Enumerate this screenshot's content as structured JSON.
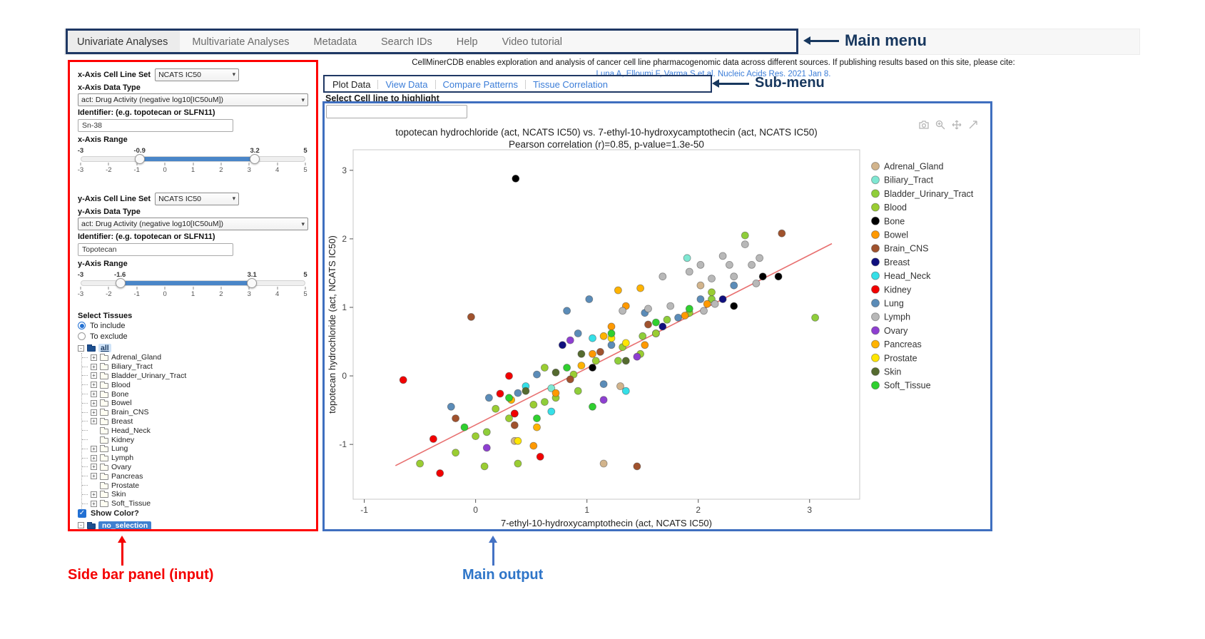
{
  "annotations": {
    "main_menu": "Main menu",
    "sub_menu": "Sub-menu",
    "sidebar": "Side bar panel (input)",
    "main_output": "Main output"
  },
  "main_menu": {
    "items": [
      {
        "label": "Univariate Analyses",
        "active": true
      },
      {
        "label": "Multivariate Analyses",
        "active": false
      },
      {
        "label": "Metadata",
        "active": false
      },
      {
        "label": "Search IDs",
        "active": false
      },
      {
        "label": "Help",
        "active": false
      },
      {
        "label": "Video tutorial",
        "active": false
      }
    ]
  },
  "citation": {
    "line1": "CellMinerCDB enables exploration and analysis of cancer cell line pharmacogenomic data across different sources. If publishing results based on this site, please cite:",
    "link": "Luna A, Elloumi F, Varma S et al. Nucleic Acids Res. 2021 Jan 8."
  },
  "submenu": {
    "items": [
      {
        "label": "Plot Data",
        "active": true
      },
      {
        "label": "View Data",
        "active": false
      },
      {
        "label": "Compare Patterns",
        "active": false
      },
      {
        "label": "Tissue Correlation",
        "active": false
      }
    ]
  },
  "highlight": {
    "label": "Select Cell line to highlight",
    "value": ""
  },
  "sidebar": {
    "x_axis": {
      "cell_line_set_label": "x-Axis Cell Line Set",
      "cell_line_set_value": "NCATS IC50",
      "data_type_label": "x-Axis Data Type",
      "data_type_value": "act: Drug Activity (negative log10[IC50uM])",
      "identifier_label": "Identifier: (e.g. topotecan or SLFN11)",
      "identifier_value": "Sn-38",
      "range_label": "x-Axis Range",
      "range_min": -3,
      "range_max": 5,
      "low": -0.9,
      "high": 3.2,
      "ticks": [
        -3,
        -2,
        -1,
        0,
        1,
        2,
        3,
        4,
        5
      ]
    },
    "y_axis": {
      "cell_line_set_label": "y-Axis Cell Line Set",
      "cell_line_set_value": "NCATS IC50",
      "data_type_label": "y-Axis Data Type",
      "data_type_value": "act: Drug Activity (negative log10[IC50uM])",
      "identifier_label": "Identifier: (e.g. topotecan or SLFN11)",
      "identifier_value": "Topotecan",
      "range_label": "y-Axis Range",
      "range_min": -3,
      "range_max": 5,
      "low": -1.6,
      "high": 3.1,
      "ticks": [
        -3,
        -2,
        -1,
        0,
        1,
        2,
        3,
        4,
        5
      ]
    },
    "tissues": {
      "label": "Select Tissues",
      "include_label": "To include",
      "exclude_label": "To exclude",
      "include_selected": true,
      "root": "all",
      "items": [
        {
          "label": "Adrenal_Gland",
          "expandable": true
        },
        {
          "label": "Biliary_Tract",
          "expandable": true
        },
        {
          "label": "Bladder_Urinary_Tract",
          "expandable": true
        },
        {
          "label": "Blood",
          "expandable": true
        },
        {
          "label": "Bone",
          "expandable": true
        },
        {
          "label": "Bowel",
          "expandable": true
        },
        {
          "label": "Brain_CNS",
          "expandable": true
        },
        {
          "label": "Breast",
          "expandable": true
        },
        {
          "label": "Head_Neck",
          "expandable": false
        },
        {
          "label": "Kidney",
          "expandable": false
        },
        {
          "label": "Lung",
          "expandable": true
        },
        {
          "label": "Lymph",
          "expandable": true
        },
        {
          "label": "Ovary",
          "expandable": true
        },
        {
          "label": "Pancreas",
          "expandable": true
        },
        {
          "label": "Prostate",
          "expandable": false
        },
        {
          "label": "Skin",
          "expandable": true
        },
        {
          "label": "Soft_Tissue",
          "expandable": true
        }
      ],
      "show_color_label": "Show Color?",
      "show_color_checked": true,
      "no_selection_label": "no_selection"
    }
  },
  "chart_data": {
    "type": "scatter",
    "title": "topotecan hydrochloride (act, NCATS IC50) vs. 7-ethyl-10-hydroxycamptothecin (act, NCATS IC50)",
    "subtitle": "Pearson correlation (r)=0.85, p-value=1.3e-50",
    "xlabel": "7-ethyl-10-hydroxycamptothecin (act, NCATS IC50)",
    "ylabel": "topotecan hydrochloride (act, NCATS IC50)",
    "xlim": [
      -1.1,
      3.45
    ],
    "ylim": [
      -1.8,
      3.3
    ],
    "xticks": [
      -1,
      0,
      1,
      2,
      3
    ],
    "yticks": [
      -1,
      0,
      1,
      2,
      3
    ],
    "grid": false,
    "legend_position": "right",
    "trendline": {
      "x1": -0.72,
      "y1": -1.31,
      "x2": 3.2,
      "y2": 1.93,
      "color": "#e87070"
    },
    "modebar_icons": [
      "camera",
      "zoom-in",
      "pan",
      "autoscale"
    ],
    "series": [
      {
        "name": "Adrenal_Gland",
        "color": "#d2b48c",
        "points": [
          [
            1.15,
            -1.28
          ],
          [
            2.02,
            1.32
          ],
          [
            1.3,
            -0.15
          ],
          [
            0.35,
            -0.95
          ]
        ]
      },
      {
        "name": "Biliary_Tract",
        "color": "#7fe7d2",
        "points": [
          [
            1.9,
            1.72
          ],
          [
            0.68,
            -0.18
          ],
          [
            1.62,
            0.62
          ]
        ]
      },
      {
        "name": "Bladder_Urinary_Tract",
        "color": "#8fce3a",
        "points": [
          [
            0.1,
            -0.82
          ],
          [
            0.62,
            -0.38
          ],
          [
            1.28,
            0.22
          ],
          [
            1.72,
            0.82
          ],
          [
            2.12,
            1.12
          ],
          [
            3.05,
            0.85
          ],
          [
            1.5,
            0.58
          ],
          [
            0.92,
            -0.22
          ],
          [
            2.42,
            2.05
          ]
        ]
      },
      {
        "name": "Blood",
        "color": "#9acd32",
        "points": [
          [
            -0.5,
            -1.28
          ],
          [
            -0.18,
            -1.12
          ],
          [
            0.0,
            -0.88
          ],
          [
            0.08,
            -1.32
          ],
          [
            0.3,
            -0.62
          ],
          [
            0.38,
            -1.28
          ],
          [
            0.52,
            -0.42
          ],
          [
            0.72,
            -0.32
          ],
          [
            0.88,
            0.02
          ],
          [
            1.08,
            0.22
          ],
          [
            1.32,
            0.42
          ],
          [
            1.62,
            0.62
          ],
          [
            1.92,
            0.92
          ],
          [
            2.12,
            1.22
          ],
          [
            0.62,
            0.12
          ],
          [
            1.48,
            0.32
          ],
          [
            0.18,
            -0.48
          ]
        ]
      },
      {
        "name": "Bone",
        "color": "#000000",
        "points": [
          [
            0.36,
            2.88
          ],
          [
            2.58,
            1.45
          ],
          [
            2.72,
            1.45
          ],
          [
            1.05,
            0.12
          ],
          [
            2.32,
            1.02
          ]
        ]
      },
      {
        "name": "Bowel",
        "color": "#ff9900",
        "points": [
          [
            0.35,
            -0.55
          ],
          [
            0.72,
            -0.25
          ],
          [
            1.05,
            0.32
          ],
          [
            1.52,
            0.45
          ],
          [
            1.88,
            0.88
          ],
          [
            2.08,
            1.05
          ],
          [
            1.35,
            1.02
          ],
          [
            0.52,
            -1.02
          ],
          [
            1.22,
            0.72
          ]
        ]
      },
      {
        "name": "Brain_CNS",
        "color": "#a0522d",
        "points": [
          [
            -0.04,
            0.86
          ],
          [
            2.75,
            2.08
          ],
          [
            1.55,
            0.75
          ],
          [
            0.35,
            -0.72
          ],
          [
            1.12,
            0.35
          ],
          [
            -0.18,
            -0.62
          ],
          [
            0.85,
            -0.05
          ],
          [
            1.45,
            -1.32
          ]
        ]
      },
      {
        "name": "Breast",
        "color": "#10107e",
        "points": [
          [
            0.78,
            0.45
          ],
          [
            1.68,
            0.72
          ],
          [
            2.22,
            1.12
          ]
        ]
      },
      {
        "name": "Head_Neck",
        "color": "#35e0e8",
        "points": [
          [
            0.68,
            -0.52
          ],
          [
            1.05,
            0.55
          ],
          [
            0.45,
            -0.15
          ],
          [
            1.35,
            -0.22
          ]
        ]
      },
      {
        "name": "Kidney",
        "color": "#f20000",
        "points": [
          [
            -0.65,
            -0.06
          ],
          [
            -0.38,
            -0.92
          ],
          [
            -0.32,
            -1.42
          ],
          [
            0.22,
            -0.26
          ],
          [
            0.35,
            -0.55
          ],
          [
            0.58,
            -1.18
          ],
          [
            0.3,
            0.0
          ]
        ]
      },
      {
        "name": "Lung",
        "color": "#5b8cb8",
        "points": [
          [
            -0.22,
            -0.45
          ],
          [
            0.12,
            -0.32
          ],
          [
            0.55,
            0.02
          ],
          [
            0.82,
            0.95
          ],
          [
            1.02,
            1.12
          ],
          [
            1.22,
            0.45
          ],
          [
            1.52,
            0.92
          ],
          [
            1.82,
            0.85
          ],
          [
            2.02,
            1.12
          ],
          [
            1.15,
            -0.12
          ],
          [
            0.38,
            -0.25
          ],
          [
            2.32,
            1.32
          ],
          [
            0.92,
            0.62
          ]
        ]
      },
      {
        "name": "Lymph",
        "color": "#b8b8b8",
        "points": [
          [
            1.32,
            0.95
          ],
          [
            1.55,
            0.98
          ],
          [
            1.75,
            1.02
          ],
          [
            1.92,
            1.52
          ],
          [
            2.02,
            1.62
          ],
          [
            2.12,
            1.42
          ],
          [
            2.22,
            1.75
          ],
          [
            2.32,
            1.45
          ],
          [
            2.42,
            1.92
          ],
          [
            2.52,
            1.35
          ],
          [
            2.15,
            1.05
          ],
          [
            1.68,
            1.45
          ],
          [
            2.55,
            1.72
          ],
          [
            2.48,
            1.62
          ],
          [
            2.28,
            1.62
          ],
          [
            2.05,
            0.95
          ]
        ]
      },
      {
        "name": "Ovary",
        "color": "#8e3fd1",
        "points": [
          [
            0.1,
            -1.05
          ],
          [
            0.85,
            0.52
          ],
          [
            1.15,
            -0.35
          ],
          [
            1.45,
            0.28
          ]
        ]
      },
      {
        "name": "Pancreas",
        "color": "#ffb300",
        "points": [
          [
            0.55,
            -0.75
          ],
          [
            0.95,
            0.15
          ],
          [
            1.28,
            1.25
          ],
          [
            1.48,
            1.28
          ],
          [
            0.32,
            -0.35
          ],
          [
            1.15,
            0.58
          ]
        ]
      },
      {
        "name": "Prostate",
        "color": "#ffe600",
        "points": [
          [
            0.38,
            -0.95
          ],
          [
            1.35,
            0.48
          ],
          [
            1.22,
            0.55
          ]
        ]
      },
      {
        "name": "Skin",
        "color": "#556b2f",
        "points": [
          [
            0.45,
            -0.22
          ],
          [
            0.95,
            0.32
          ],
          [
            1.35,
            0.22
          ],
          [
            0.72,
            0.05
          ]
        ]
      },
      {
        "name": "Soft_Tissue",
        "color": "#2fd02f",
        "points": [
          [
            -0.1,
            -0.75
          ],
          [
            0.3,
            -0.32
          ],
          [
            0.82,
            0.12
          ],
          [
            1.22,
            0.62
          ],
          [
            1.62,
            0.78
          ],
          [
            0.55,
            -0.62
          ],
          [
            1.05,
            -0.45
          ],
          [
            1.92,
            0.98
          ]
        ]
      }
    ]
  }
}
